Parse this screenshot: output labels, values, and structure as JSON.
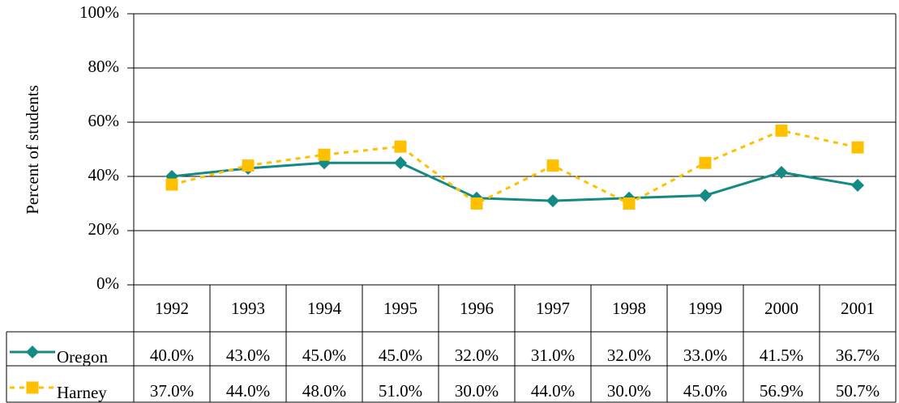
{
  "chart_data": {
    "type": "line",
    "y_label": "Percent of students",
    "categories": [
      "1992",
      "1993",
      "1994",
      "1995",
      "1996",
      "1997",
      "1998",
      "1999",
      "2000",
      "2001"
    ],
    "series": [
      {
        "name": "Oregon",
        "color": "#138a84",
        "marker": "diamond",
        "line_style": "solid",
        "values": [
          40.0,
          43.0,
          45.0,
          45.0,
          32.0,
          31.0,
          32.0,
          33.0,
          41.5,
          36.7
        ],
        "value_labels": [
          "40.0%",
          "43.0%",
          "45.0%",
          "45.0%",
          "32.0%",
          "31.0%",
          "32.0%",
          "33.0%",
          "41.5%",
          "36.7%"
        ]
      },
      {
        "name": "Harney",
        "color": "#ffc000",
        "marker": "square",
        "line_style": "dashed",
        "values": [
          37.0,
          44.0,
          48.0,
          51.0,
          30.0,
          44.0,
          30.0,
          45.0,
          56.9,
          50.7
        ],
        "value_labels": [
          "37.0%",
          "44.0%",
          "48.0%",
          "51.0%",
          "30.0%",
          "44.0%",
          "30.0%",
          "45.0%",
          "56.9%",
          "50.7%"
        ]
      }
    ],
    "ylim": [
      0,
      100
    ],
    "yticks": [
      {
        "value": 0,
        "label": "0%"
      },
      {
        "value": 20,
        "label": "20%"
      },
      {
        "value": 40,
        "label": "40%"
      },
      {
        "value": 60,
        "label": "60%"
      },
      {
        "value": 80,
        "label": "80%"
      },
      {
        "value": 100,
        "label": "100%"
      }
    ],
    "grid": true
  }
}
